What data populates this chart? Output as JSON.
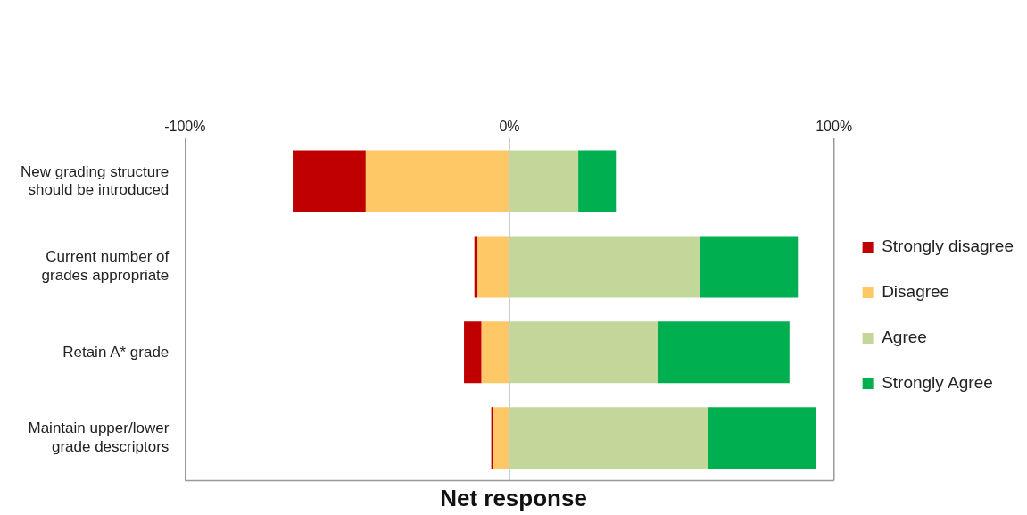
{
  "chart_data": {
    "type": "bar",
    "orientation": "horizontal",
    "stacked": true,
    "xlabel": "Net response",
    "categories": [
      "New grading structure should be introduced",
      "Current number of grades appropriate",
      "Retain A* grade",
      "Maintain upper/lower grade descriptors"
    ],
    "series": [
      {
        "name": "Disagree",
        "color": "#fdc865",
        "values": [
          -44.3,
          -9.8,
          -8.6,
          -5.0
        ]
      },
      {
        "name": "Strongly disagree",
        "color": "#c00000",
        "values": [
          -22.5,
          -1.0,
          -5.4,
          -0.6
        ]
      },
      {
        "name": "Agree",
        "color": "#c4d79b",
        "values": [
          21.2,
          58.6,
          45.7,
          61.1
        ]
      },
      {
        "name": "Strongly Agree",
        "color": "#00b050",
        "values": [
          11.6,
          30.3,
          40.6,
          33.3
        ]
      }
    ],
    "xlim": [
      -100,
      100
    ],
    "xticks": [
      {
        "value": -100,
        "label": "-100%"
      },
      {
        "value": 0,
        "label": "0%"
      },
      {
        "value": 100,
        "label": "100%"
      }
    ],
    "grid": "x",
    "legend": "right"
  }
}
